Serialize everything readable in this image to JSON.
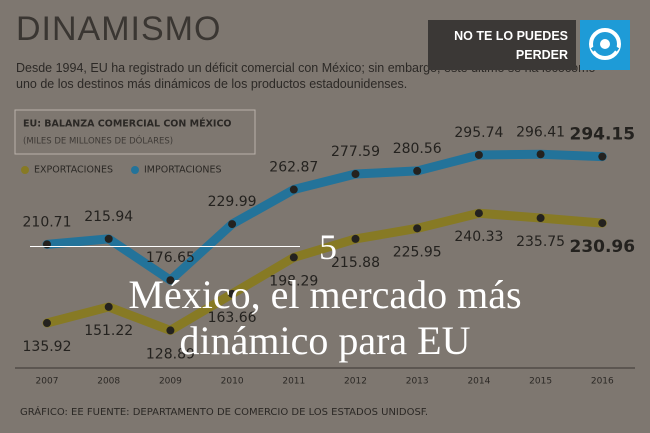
{
  "header": {
    "title": "DINAMISMO",
    "subtitle": "Desde 1994, EU ha registrado un déficit comercial con México; sin embargo, este último se ha locócomo uno de los destinos más dinámicos de los productos estadounidenses."
  },
  "badge": {
    "text": "NO TE LO PUEDES PERDER"
  },
  "chart_data": {
    "type": "line",
    "title": "EU: BALANZA COMERCIAL CON MÉXICO",
    "subtitle": "(MILES DE MILLONES DE DÓLARES)",
    "categories": [
      "2007",
      "2008",
      "2009",
      "2010",
      "2011",
      "2012",
      "2013",
      "2014",
      "2015",
      "2016"
    ],
    "series": [
      {
        "name": "EXPORTACIONES",
        "color": "#877a24",
        "values": [
          135.92,
          151.22,
          128.89,
          163.66,
          198.29,
          215.88,
          225.95,
          240.33,
          235.75,
          230.96
        ]
      },
      {
        "name": "IMPORTACIONES",
        "color": "#23739a",
        "values": [
          210.71,
          215.94,
          176.65,
          229.99,
          262.87,
          277.59,
          280.56,
          295.74,
          296.41,
          294.15
        ]
      }
    ],
    "ylim": [
      96,
      348
    ]
  },
  "footer": "GRÁFICO: EE  FUENTE: DEPARTAMENTO DE COMERCIO DE LOS ESTADOS UNIDOSF.",
  "overlay": {
    "number": "5",
    "headline": "México, el mercado más dinámico para EU"
  }
}
